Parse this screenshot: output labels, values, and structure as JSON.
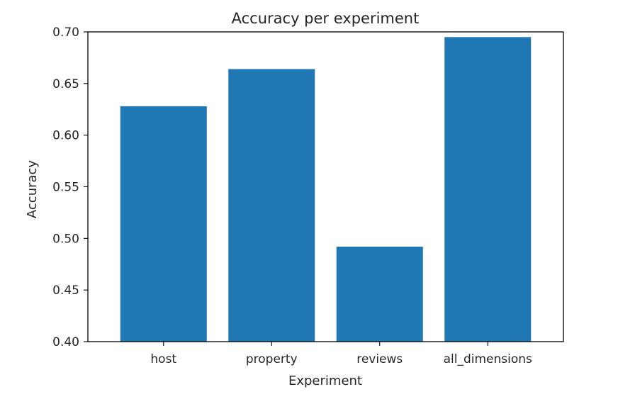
{
  "chart_data": {
    "type": "bar",
    "title": "Accuracy per experiment",
    "xlabel": "Experiment",
    "ylabel": "Accuracy",
    "categories": [
      "host",
      "property",
      "reviews",
      "all_dimensions"
    ],
    "values": [
      0.628,
      0.664,
      0.492,
      0.695
    ],
    "ylim": [
      0.4,
      0.7
    ],
    "yticks": [
      "0.40",
      "0.45",
      "0.50",
      "0.55",
      "0.60",
      "0.65",
      "0.70"
    ],
    "bar_color": "#1f77b4",
    "grid": false,
    "legend": null
  }
}
